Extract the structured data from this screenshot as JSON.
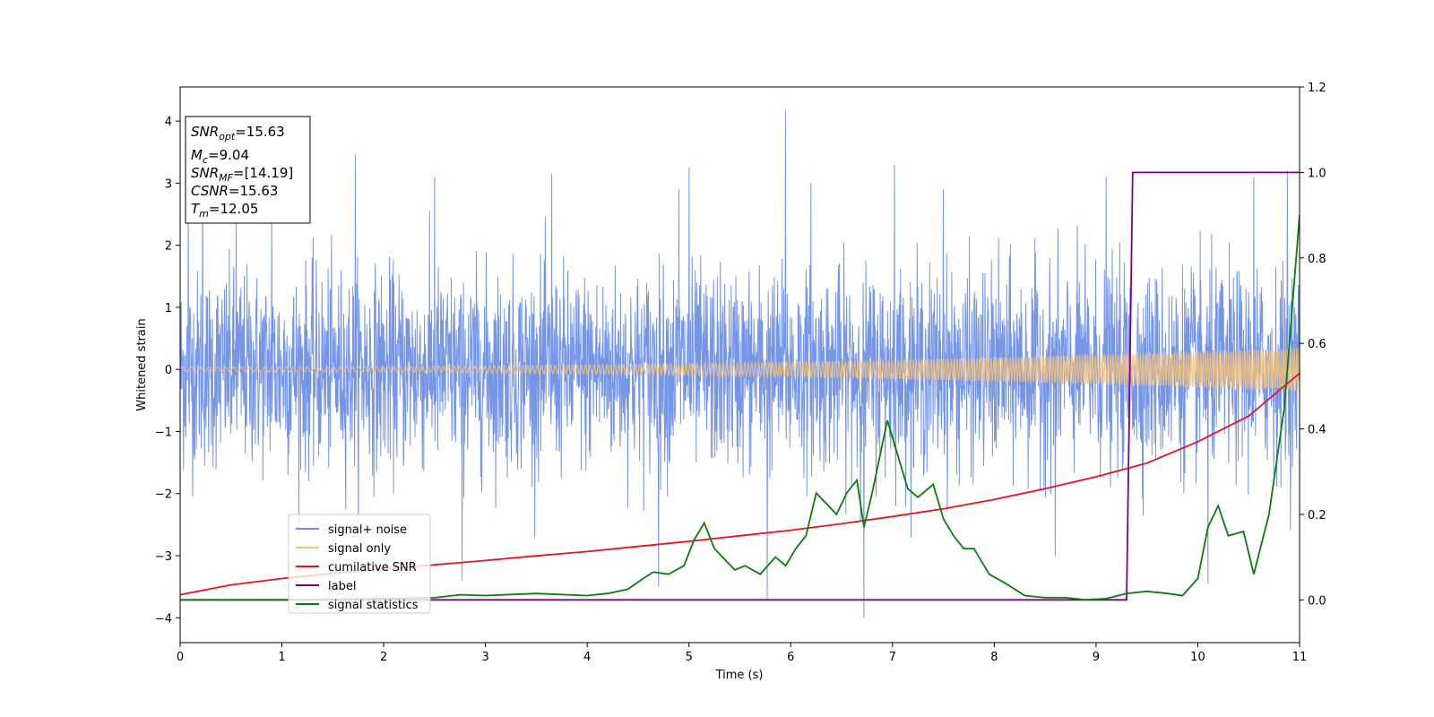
{
  "chart_data": {
    "type": "line",
    "title": "",
    "xlabel": "Time (s)",
    "ylabel": "Whitened strain",
    "y2label": "",
    "xlim": [
      0,
      11
    ],
    "ylim": [
      -4.4,
      4.55
    ],
    "y2lim": [
      -0.1,
      1.2
    ],
    "xticks": [
      "0",
      "1",
      "2",
      "3",
      "4",
      "5",
      "6",
      "7",
      "8",
      "9",
      "10",
      "11"
    ],
    "yticks": [
      "4",
      "3",
      "2",
      "1",
      "0",
      "−1",
      "−2",
      "−3",
      "−4"
    ],
    "y2ticks": [
      "1.2",
      "1.0",
      "0.8",
      "0.6",
      "0.4",
      "0.2",
      "0.0"
    ],
    "xtick_values": [
      0,
      1,
      2,
      3,
      4,
      5,
      6,
      7,
      8,
      9,
      10,
      11
    ],
    "ytick_values": [
      4,
      3,
      2,
      1,
      0,
      -1,
      -2,
      -3,
      -4
    ],
    "y2tick_values": [
      1.2,
      1.0,
      0.8,
      0.6,
      0.4,
      0.2,
      0.0
    ],
    "grid": false,
    "legend_position": "lower-left",
    "annotation": {
      "lines": [
        {
          "base": "SNR",
          "sub": "opt",
          "value": "=15.63"
        },
        {
          "base": "M",
          "sub": "c",
          "value": "=9.04"
        },
        {
          "base": "SNR",
          "sub": "MF",
          "value": "=[14.19]"
        },
        {
          "base": "CSNR",
          "sub": "",
          "value": "=15.63"
        },
        {
          "base": "T",
          "sub": "m",
          "value": "=12.05"
        }
      ],
      "position": "top-left"
    },
    "series": [
      {
        "name": "signal+ noise",
        "axis": "left",
        "color": "#6e8fe6",
        "style": "noise",
        "typical_range": [
          -1.8,
          1.8
        ],
        "spikes": [
          {
            "x": 0.08,
            "y": 2.9
          },
          {
            "x": 0.22,
            "y": 3.1
          },
          {
            "x": 0.55,
            "y": 2.6
          },
          {
            "x": 0.9,
            "y": 2.7
          },
          {
            "x": 1.72,
            "y": 3.45
          },
          {
            "x": 2.5,
            "y": 3.1
          },
          {
            "x": 2.77,
            "y": -3.4
          },
          {
            "x": 3.65,
            "y": 3.15
          },
          {
            "x": 4.7,
            "y": -3.5
          },
          {
            "x": 4.9,
            "y": 2.9
          },
          {
            "x": 5.0,
            "y": 3.25
          },
          {
            "x": 5.77,
            "y": -3.7
          },
          {
            "x": 5.95,
            "y": 4.18
          },
          {
            "x": 6.2,
            "y": 3.0
          },
          {
            "x": 6.72,
            "y": -4.0
          },
          {
            "x": 7.02,
            "y": 3.3
          },
          {
            "x": 7.5,
            "y": 2.9
          },
          {
            "x": 8.6,
            "y": -3.0
          },
          {
            "x": 9.1,
            "y": 3.1
          },
          {
            "x": 10.1,
            "y": -3.45
          },
          {
            "x": 10.55,
            "y": 3.1
          },
          {
            "x": 10.88,
            "y": 3.2
          }
        ]
      },
      {
        "name": "signal only",
        "axis": "left",
        "color": "#f5c27a",
        "style": "chirp",
        "amplitude_start": 0.04,
        "amplitude_end": 0.35
      },
      {
        "name": "cumilative SNR",
        "axis": "right",
        "color": "#e8141a",
        "x": [
          0,
          0.5,
          1,
          1.5,
          2,
          2.5,
          3,
          3.5,
          4,
          4.5,
          5,
          5.5,
          6,
          6.5,
          7,
          7.5,
          8,
          8.5,
          9,
          9.5,
          10,
          10.5,
          11
        ],
        "y": [
          0.012,
          0.035,
          0.05,
          0.062,
          0.072,
          0.082,
          0.092,
          0.103,
          0.113,
          0.125,
          0.137,
          0.15,
          0.163,
          0.178,
          0.195,
          0.213,
          0.235,
          0.26,
          0.288,
          0.32,
          0.37,
          0.43,
          0.53
        ]
      },
      {
        "name": "label",
        "axis": "right",
        "color": "#800080",
        "x": [
          0,
          9.3,
          9.36,
          11
        ],
        "y": [
          0,
          0,
          1,
          1
        ]
      },
      {
        "name": "signal statistics",
        "axis": "right",
        "color": "#0a7d0a",
        "x": [
          0,
          1,
          2,
          2.5,
          2.75,
          3,
          3.5,
          4,
          4.2,
          4.4,
          4.55,
          4.65,
          4.8,
          4.95,
          5.05,
          5.15,
          5.25,
          5.45,
          5.55,
          5.7,
          5.85,
          5.95,
          6.05,
          6.15,
          6.25,
          6.45,
          6.55,
          6.65,
          6.72,
          6.8,
          6.95,
          7.05,
          7.15,
          7.25,
          7.4,
          7.5,
          7.6,
          7.7,
          7.8,
          7.95,
          8.1,
          8.3,
          8.5,
          8.7,
          8.9,
          9.1,
          9.3,
          9.5,
          9.7,
          9.85,
          10.0,
          10.1,
          10.2,
          10.3,
          10.45,
          10.55,
          10.7,
          10.85,
          11
        ],
        "y": [
          0.0,
          0.0,
          0.003,
          0.005,
          0.012,
          0.01,
          0.015,
          0.01,
          0.015,
          0.025,
          0.05,
          0.065,
          0.06,
          0.08,
          0.14,
          0.18,
          0.12,
          0.07,
          0.08,
          0.06,
          0.1,
          0.08,
          0.12,
          0.15,
          0.25,
          0.2,
          0.25,
          0.28,
          0.17,
          0.25,
          0.42,
          0.34,
          0.26,
          0.24,
          0.27,
          0.19,
          0.15,
          0.12,
          0.12,
          0.06,
          0.04,
          0.01,
          0.005,
          0.005,
          0.0,
          0.003,
          0.015,
          0.02,
          0.015,
          0.01,
          0.05,
          0.17,
          0.22,
          0.15,
          0.16,
          0.06,
          0.2,
          0.45,
          0.9
        ]
      }
    ]
  }
}
